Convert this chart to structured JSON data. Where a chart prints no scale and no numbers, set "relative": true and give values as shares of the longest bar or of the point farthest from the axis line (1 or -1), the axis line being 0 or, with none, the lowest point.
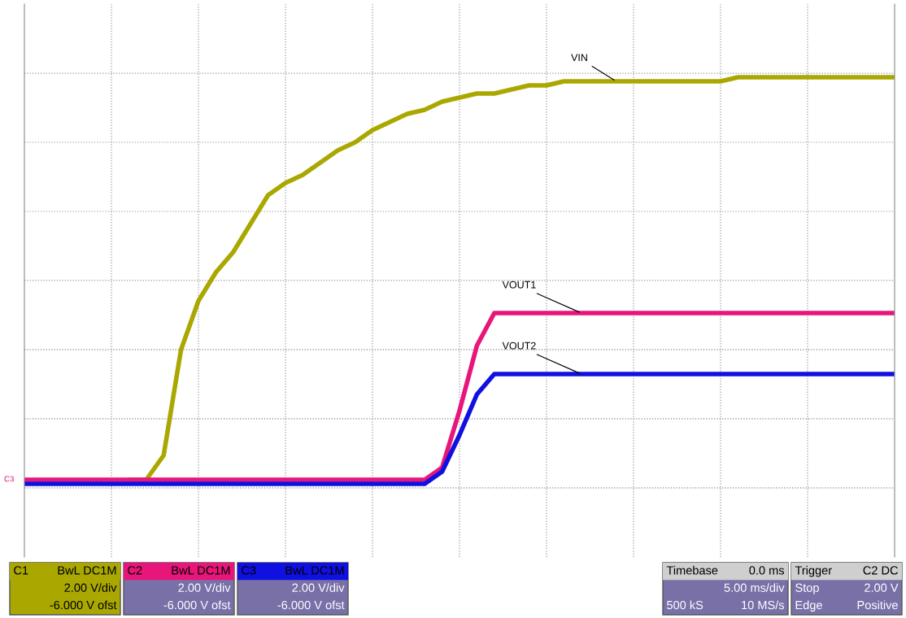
{
  "chart_data": {
    "type": "line",
    "relative": true,
    "grid": true,
    "legend": false,
    "categories": [
      null,
      null,
      null,
      null,
      null,
      null,
      null,
      null,
      null,
      null,
      null,
      null,
      null,
      null,
      null,
      null,
      null,
      null,
      null,
      null,
      null,
      null,
      null,
      null,
      null,
      null,
      null,
      null,
      null,
      null,
      null,
      null,
      null,
      null,
      null,
      null,
      null,
      null,
      null,
      null,
      null,
      null,
      null,
      null,
      null,
      null,
      null,
      null,
      null,
      null,
      null
    ],
    "series": [
      {
        "name": "VIN",
        "color": "#aaa800",
        "values": [
          null,
          null,
          null,
          null,
          null,
          null,
          0.01,
          0.01,
          0.07,
          0.33,
          0.45,
          0.52,
          0.57,
          0.64,
          0.71,
          0.74,
          0.76,
          0.79,
          0.82,
          0.84,
          0.87,
          0.89,
          0.91,
          0.92,
          0.94,
          0.95,
          0.96,
          0.96,
          0.97,
          0.98,
          0.98,
          0.99,
          0.99,
          0.99,
          0.99,
          0.99,
          0.99,
          0.99,
          0.99,
          0.99,
          0.99,
          1.0,
          1.0,
          1.0,
          1.0,
          1.0,
          1.0,
          1.0,
          1.0,
          1.0,
          1.0
        ]
      },
      {
        "name": "VOUT1",
        "color": "#e8157a",
        "values": [
          0.01,
          0.01,
          0.01,
          0.01,
          0.01,
          0.01,
          0.01,
          0.01,
          0.01,
          0.01,
          0.01,
          0.01,
          0.01,
          0.01,
          0.01,
          0.01,
          0.01,
          0.01,
          0.01,
          0.01,
          0.01,
          0.01,
          0.01,
          0.01,
          0.04,
          0.18,
          0.34,
          0.42,
          0.42,
          0.42,
          0.42,
          0.42,
          0.42,
          0.42,
          0.42,
          0.42,
          0.42,
          0.42,
          0.42,
          0.42,
          0.42,
          0.42,
          0.42,
          0.42,
          0.42,
          0.42,
          0.42,
          0.42,
          0.42,
          0.42,
          0.42
        ]
      },
      {
        "name": "VOUT2",
        "color": "#1010e0",
        "values": [
          0.0,
          0.0,
          0.0,
          0.0,
          0.0,
          0.0,
          0.0,
          0.0,
          0.0,
          0.0,
          0.0,
          0.0,
          0.0,
          0.0,
          0.0,
          0.0,
          0.0,
          0.0,
          0.0,
          0.0,
          0.0,
          0.0,
          0.0,
          0.0,
          0.03,
          0.12,
          0.22,
          0.27,
          0.27,
          0.27,
          0.27,
          0.27,
          0.27,
          0.27,
          0.27,
          0.27,
          0.27,
          0.27,
          0.27,
          0.27,
          0.27,
          0.27,
          0.27,
          0.27,
          0.27,
          0.27,
          0.27,
          0.27,
          0.27,
          0.27,
          0.27
        ]
      }
    ],
    "annotations": [
      "C3",
      "C1  BwL DC1M\n2.00 V/div\n-6.000 V ofst",
      "C2  BwL DC1M\n2.00 V/div\n-6.000 V ofst",
      "C3  BwL DC1M\n2.00 V/div\n-6.000 V ofst",
      "Timebase  0.0 ms\n5.00 ms/div\n500 kS  10 MS/s",
      "Trigger  C2 DC\nStop  2.00 V\nEdge  Positive"
    ]
  }
}
